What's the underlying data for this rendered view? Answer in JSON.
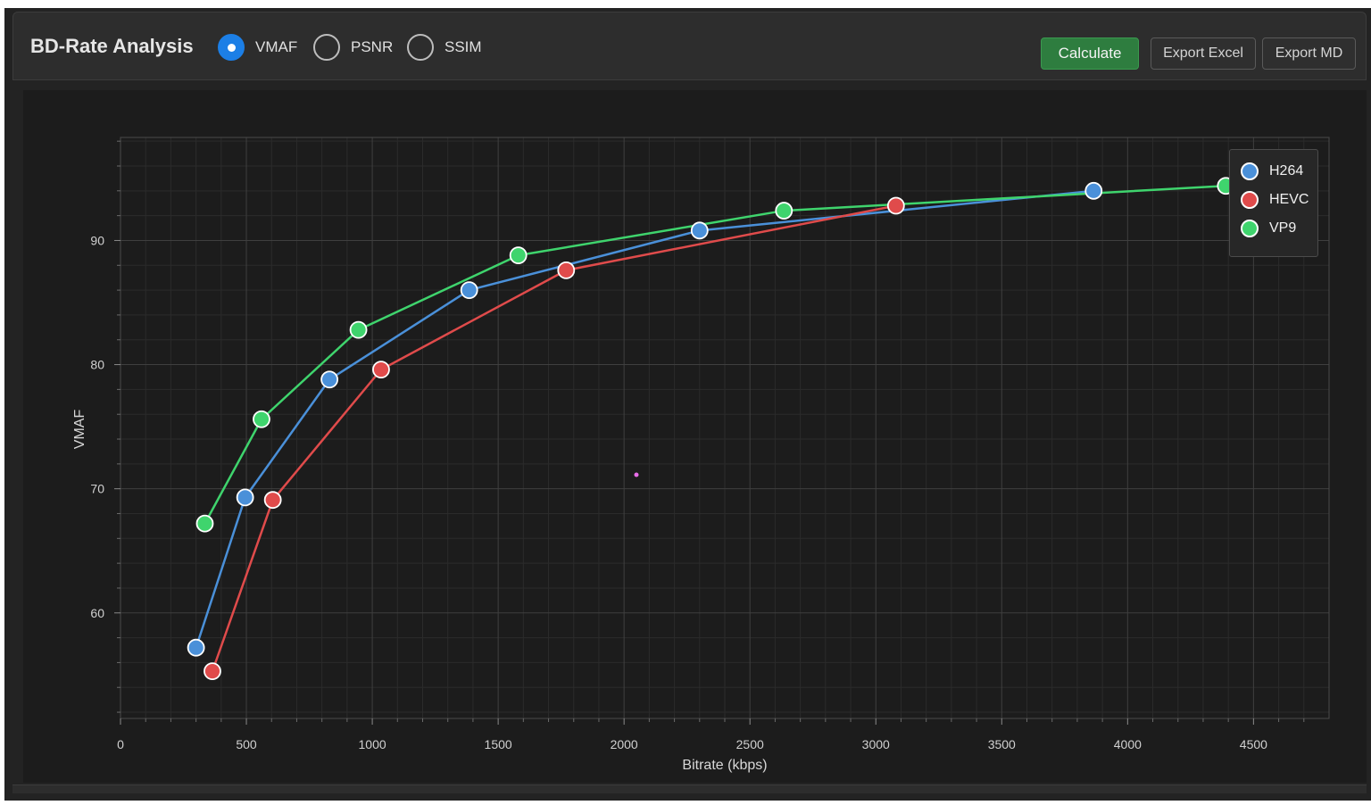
{
  "header": {
    "title": "BD-Rate Analysis",
    "metrics": [
      {
        "label": "VMAF",
        "checked": true
      },
      {
        "label": "PSNR",
        "checked": false
      },
      {
        "label": "SSIM",
        "checked": false
      }
    ],
    "calculate_label": "Calculate",
    "export_excel_label": "Export Excel",
    "export_md_label": "Export MD"
  },
  "colors": {
    "accent": "#1c7fe6",
    "calculate": "#2e7d3f",
    "H264": "#4a90d9",
    "HEVC": "#e04b4b",
    "VP9": "#3fd46d"
  },
  "chart_data": {
    "type": "line",
    "xlabel": "Bitrate (kbps)",
    "ylabel": "VMAF",
    "xlim": [
      0,
      4800
    ],
    "ylim": [
      51.5,
      98.3
    ],
    "x_ticks": [
      0,
      500,
      1000,
      1500,
      2000,
      2500,
      3000,
      3500,
      4000,
      4500
    ],
    "y_ticks": [
      60,
      70,
      80,
      90
    ],
    "grid": true,
    "legend_position": "top-right",
    "series": [
      {
        "name": "H264",
        "points": [
          [
            300,
            57.2
          ],
          [
            495,
            69.3
          ],
          [
            830,
            78.8
          ],
          [
            1385,
            86.0
          ],
          [
            2300,
            90.8
          ],
          [
            3865,
            94.0
          ]
        ]
      },
      {
        "name": "HEVC",
        "points": [
          [
            365,
            55.3
          ],
          [
            605,
            69.1
          ],
          [
            1035,
            79.6
          ],
          [
            1770,
            87.6
          ],
          [
            3080,
            92.8
          ]
        ]
      },
      {
        "name": "VP9",
        "points": [
          [
            335,
            67.2
          ],
          [
            560,
            75.6
          ],
          [
            945,
            82.8
          ],
          [
            1580,
            88.8
          ],
          [
            2635,
            92.4
          ],
          [
            4390,
            94.4
          ]
        ]
      }
    ]
  }
}
